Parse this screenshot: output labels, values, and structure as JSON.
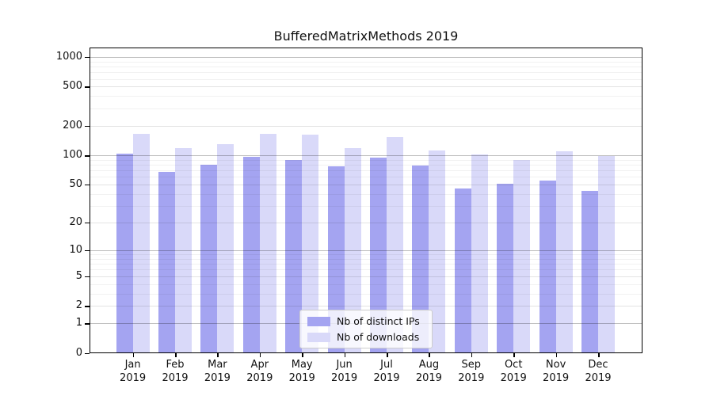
{
  "chart_data": {
    "type": "bar",
    "title": "BufferedMatrixMethods 2019",
    "categories": [
      "Jan 2019",
      "Feb 2019",
      "Mar 2019",
      "Apr 2019",
      "May 2019",
      "Jun 2019",
      "Jul 2019",
      "Aug 2019",
      "Sep 2019",
      "Oct 2019",
      "Nov 2019",
      "Dec 2019"
    ],
    "months": [
      "Jan",
      "Feb",
      "Mar",
      "Apr",
      "May",
      "Jun",
      "Jul",
      "Aug",
      "Sep",
      "Oct",
      "Nov",
      "Dec"
    ],
    "year_label": "2019",
    "series": [
      {
        "name": "Nb of distinct IPs",
        "color": "#a4a4f1",
        "values": [
          105,
          68,
          80,
          98,
          90,
          78,
          95,
          79,
          46,
          51,
          55,
          43
        ]
      },
      {
        "name": "Nb of downloads",
        "color": "#d9d9f9",
        "values": [
          168,
          120,
          130,
          168,
          165,
          119,
          154,
          112,
          103,
          91,
          110,
          100
        ]
      }
    ],
    "xlabel": "",
    "ylabel": "",
    "y_scale": "log1p",
    "y_ticks": [
      0,
      1,
      2,
      5,
      10,
      20,
      50,
      100,
      200,
      500,
      1000
    ],
    "y_minor_ticks": [
      3,
      4,
      6,
      7,
      8,
      9,
      30,
      40,
      60,
      70,
      80,
      90,
      300,
      400,
      600,
      700,
      800,
      900
    ],
    "ylim": [
      0,
      1250
    ],
    "grid": true,
    "legend_position": "lower center-left",
    "colors": {
      "bar_dark": "#a4a4f1",
      "bar_light": "#d9d9f9",
      "grid_major": "rgba(0,0,0,0.25)",
      "grid_mid": "rgba(0,0,0,0.11)",
      "grid_minor": "rgba(0,0,0,0.055)",
      "spine": "#000000",
      "text": "#111111"
    }
  }
}
